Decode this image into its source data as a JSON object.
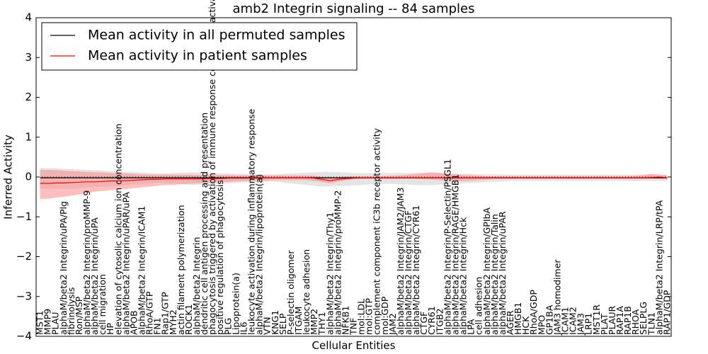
{
  "chart_data": {
    "type": "line",
    "title": "amb2 Integrin signaling -- 84 samples",
    "xlabel": "Cellular Entities",
    "ylabel": "Inferred Activity",
    "ylim": [
      -4,
      4
    ],
    "yticks": [
      -4,
      -3,
      -2,
      -1,
      0,
      1,
      2,
      3,
      4
    ],
    "legend": {
      "placement": "top-left",
      "entries": [
        {
          "label": "Mean activity in all permuted samples",
          "color": "#000000"
        },
        {
          "label": "Mean activity in patient samples",
          "color": "#ff0000"
        }
      ]
    },
    "categories": [
      "MST1",
      "MMP9",
      "PLAU",
      "alphaM/beta2 Integrin/uPA/Plg",
      "fibrinolysis",
      "Ron/MSP",
      "alphaM/beta2 Integrin/proMMP-9",
      "alphaM/beta2 Integrin/uPA",
      "cell migration",
      "HP",
      "elevation of cytosolic calcium ion concentration",
      "alphaM/beta2 Integrin/uPAR/uPA",
      "APOB",
      "alphaM/beta2 Integrin/ICAM1",
      "RhoA/GTP",
      "FN1",
      "Rap1/GTP",
      "MYH2",
      "actin filament polymerization",
      "ROCK1",
      "alphaM/beta2 Integrin",
      "dendritic cell antigen processing and presentation",
      "phagocytosis triggered by activation of immune response cell surface activating receptor",
      "positive regulation of phagocytosis",
      "PLG",
      "Lipoprotein(a)",
      "IL6",
      "leukocyte activation during inflammatory response",
      "alphaM/beta2 Integrin/lipoprotein(a)",
      "VTN",
      "KNG1",
      "SELP",
      "P-selectin oligomer",
      "ITGAM",
      "leukocyte adhesion",
      "MMP2",
      "THY1",
      "alphaM/beta2 Integrin/Thy1",
      "alphaM/beta2 Integrin/proMMP-2",
      "NFKB1",
      "TNF",
      "mol:LDL",
      "mol:GTP",
      "complement component iC3b receptor activity",
      "mol:GDP",
      "JAM2",
      "alphaM/beta2 Integrin/JAM2/JAM3",
      "alphaM/beta2 Integrin/CTGF",
      "alphaM/beta2 Integrin/CYR61",
      "CTGF",
      "CYR61",
      "ITGB2",
      "alphaM/beta2 Integrin/P-Selectin/PSGL1",
      "alphaM/beta2 Integrin/RAGE/HMGB1",
      "alphaM/beta2 Integrin/Hck",
      "LPA",
      "cell adhesion",
      "alphaM/beta2 Integrin/GPIbA",
      "alphaM/beta2 Integrin/Talin",
      "alphaM/beta2 Integrin/uPAR",
      "AGER",
      "HMGB1",
      "HCK",
      "RhoA/GDP",
      "MPO",
      "GP1BA",
      "JAM3 homodimer",
      "ICAM1",
      "ICAM2",
      "JAM3",
      "LRP1",
      "MST1R",
      "PLAT",
      "PLAUR",
      "RAP1A",
      "RAP1B",
      "RHOA",
      "SELPLG",
      "TLN1",
      "alphaM/beta2 Integrin/LRP/tPA",
      "RAP1/GDP"
    ],
    "series": [
      {
        "name": "Mean activity in all permuted samples",
        "color": "#000000",
        "values": [
          -0.02,
          -0.02,
          -0.02,
          -0.02,
          -0.02,
          -0.02,
          -0.02,
          -0.02,
          -0.02,
          -0.02,
          -0.02,
          -0.02,
          -0.02,
          -0.02,
          -0.02,
          -0.02,
          -0.02,
          -0.02,
          -0.02,
          -0.02,
          -0.02,
          -0.02,
          -0.02,
          -0.02,
          -0.02,
          -0.02,
          -0.02,
          -0.02,
          -0.02,
          -0.02,
          -0.02,
          -0.02,
          -0.02,
          -0.02,
          -0.02,
          -0.02,
          -0.02,
          -0.02,
          -0.02,
          -0.02,
          -0.02,
          -0.02,
          -0.02,
          -0.02,
          -0.02,
          -0.02,
          -0.02,
          -0.02,
          -0.02,
          -0.02,
          -0.02,
          -0.02,
          -0.02,
          -0.02,
          -0.02,
          -0.02,
          -0.02,
          -0.02,
          -0.02,
          -0.02,
          -0.02,
          -0.02,
          -0.02,
          -0.02,
          -0.02,
          -0.02,
          -0.02,
          -0.02,
          -0.02,
          -0.02,
          -0.02,
          -0.02,
          -0.02,
          -0.02,
          -0.02,
          -0.02,
          -0.02,
          -0.02,
          -0.02,
          -0.02,
          -0.02
        ],
        "lower": [
          -0.3,
          -0.3,
          -0.3,
          -0.3,
          -0.3,
          -0.28,
          -0.26,
          -0.25,
          -0.24,
          -0.23,
          -0.22,
          -0.2,
          -0.18,
          -0.17,
          -0.16,
          -0.15,
          -0.15,
          -0.16,
          -0.18,
          -0.2,
          -0.2,
          -0.19,
          -0.18,
          -0.17,
          -0.16,
          -0.15,
          -0.14,
          -0.13,
          -0.12,
          -0.11,
          -0.12,
          -0.14,
          -0.16,
          -0.18,
          -0.2,
          -0.22,
          -0.24,
          -0.24,
          -0.23,
          -0.22,
          -0.21,
          -0.2,
          -0.19,
          -0.18,
          -0.17,
          -0.17,
          -0.18,
          -0.19,
          -0.2,
          -0.2,
          -0.2,
          -0.19,
          -0.18,
          -0.17,
          -0.16,
          -0.15,
          -0.14,
          -0.13,
          -0.12,
          -0.11,
          -0.1,
          -0.1,
          -0.1,
          -0.1,
          -0.1,
          -0.1,
          -0.1,
          -0.1,
          -0.1,
          -0.1,
          -0.1,
          -0.1,
          -0.1,
          -0.1,
          -0.1,
          -0.1,
          -0.1,
          -0.1,
          -0.1,
          -0.1,
          -0.1
        ],
        "upper": [
          0.22,
          0.22,
          0.22,
          0.21,
          0.2,
          0.19,
          0.18,
          0.17,
          0.16,
          0.15,
          0.14,
          0.13,
          0.12,
          0.11,
          0.1,
          0.09,
          0.09,
          0.1,
          0.11,
          0.12,
          0.12,
          0.11,
          0.1,
          0.09,
          0.09,
          0.08,
          0.08,
          0.07,
          0.07,
          0.07,
          0.07,
          0.08,
          0.09,
          0.1,
          0.11,
          0.12,
          0.13,
          0.13,
          0.12,
          0.11,
          0.1,
          0.1,
          0.1,
          0.1,
          0.1,
          0.1,
          0.1,
          0.1,
          0.1,
          0.1,
          0.1,
          0.1,
          0.09,
          0.09,
          0.08,
          0.08,
          0.07,
          0.07,
          0.07,
          0.07,
          0.06,
          0.06,
          0.06,
          0.06,
          0.06,
          0.06,
          0.06,
          0.06,
          0.06,
          0.06,
          0.06,
          0.06,
          0.06,
          0.06,
          0.06,
          0.06,
          0.06,
          0.06,
          0.06,
          0.06,
          0.06
        ],
        "band_color": "#bbbbbb"
      },
      {
        "name": "Mean activity in patient samples",
        "color": "#ff0000",
        "values": [
          -0.16,
          -0.16,
          -0.15,
          -0.15,
          -0.14,
          -0.13,
          -0.12,
          -0.12,
          -0.11,
          -0.1,
          -0.1,
          -0.09,
          -0.08,
          -0.07,
          -0.06,
          -0.06,
          -0.05,
          -0.05,
          -0.05,
          -0.05,
          -0.05,
          -0.04,
          -0.04,
          -0.04,
          -0.03,
          -0.03,
          -0.03,
          -0.03,
          -0.03,
          -0.02,
          -0.02,
          -0.02,
          -0.02,
          -0.02,
          -0.02,
          -0.03,
          -0.06,
          -0.09,
          -0.06,
          -0.04,
          -0.03,
          -0.02,
          -0.02,
          -0.02,
          -0.02,
          -0.02,
          -0.02,
          -0.02,
          -0.02,
          -0.02,
          -0.02,
          -0.02,
          -0.02,
          -0.02,
          -0.02,
          -0.02,
          -0.02,
          -0.02,
          -0.02,
          -0.02,
          -0.02,
          -0.02,
          -0.02,
          -0.02,
          -0.02,
          -0.02,
          -0.02,
          -0.02,
          -0.02,
          -0.02,
          -0.02,
          -0.02,
          -0.02,
          -0.02,
          -0.02,
          -0.02,
          -0.02,
          -0.02,
          -0.01,
          0.0,
          -0.02
        ],
        "lower": [
          -0.55,
          -0.55,
          -0.52,
          -0.5,
          -0.47,
          -0.44,
          -0.4,
          -0.37,
          -0.35,
          -0.33,
          -0.31,
          -0.3,
          -0.28,
          -0.26,
          -0.24,
          -0.22,
          -0.2,
          -0.2,
          -0.18,
          -0.17,
          -0.16,
          -0.15,
          -0.14,
          -0.13,
          -0.12,
          -0.11,
          -0.1,
          -0.1,
          -0.1,
          -0.09,
          -0.08,
          -0.08,
          -0.08,
          -0.08,
          -0.08,
          -0.1,
          -0.13,
          -0.16,
          -0.12,
          -0.08,
          -0.06,
          -0.05,
          -0.05,
          -0.05,
          -0.05,
          -0.05,
          -0.05,
          -0.05,
          -0.05,
          -0.06,
          -0.07,
          -0.08,
          -0.09,
          -0.1,
          -0.1,
          -0.09,
          -0.08,
          -0.07,
          -0.06,
          -0.05,
          -0.05,
          -0.05,
          -0.05,
          -0.05,
          -0.05,
          -0.05,
          -0.05,
          -0.05,
          -0.05,
          -0.05,
          -0.05,
          -0.05,
          -0.05,
          -0.05,
          -0.05,
          -0.05,
          -0.05,
          -0.05,
          -0.04,
          -0.04,
          -0.06
        ],
        "upper": [
          0.18,
          0.18,
          0.17,
          0.16,
          0.15,
          0.14,
          0.13,
          0.12,
          0.11,
          0.1,
          0.1,
          0.09,
          0.08,
          0.07,
          0.06,
          0.06,
          0.06,
          0.06,
          0.06,
          0.06,
          0.05,
          0.05,
          0.05,
          0.05,
          0.05,
          0.04,
          0.04,
          0.04,
          0.04,
          0.04,
          0.04,
          0.04,
          0.04,
          0.04,
          0.04,
          0.03,
          0.0,
          -0.02,
          0.0,
          0.01,
          0.02,
          0.02,
          0.02,
          0.02,
          0.02,
          0.03,
          0.04,
          0.06,
          0.08,
          0.1,
          0.12,
          0.1,
          0.08,
          0.06,
          0.05,
          0.04,
          0.03,
          0.02,
          0.02,
          0.02,
          0.02,
          0.02,
          0.02,
          0.02,
          0.02,
          0.02,
          0.02,
          0.02,
          0.02,
          0.02,
          0.02,
          0.02,
          0.02,
          0.02,
          0.02,
          0.02,
          0.03,
          0.05,
          0.08,
          0.06,
          0.03
        ],
        "band_color": "#ff8080"
      }
    ]
  }
}
